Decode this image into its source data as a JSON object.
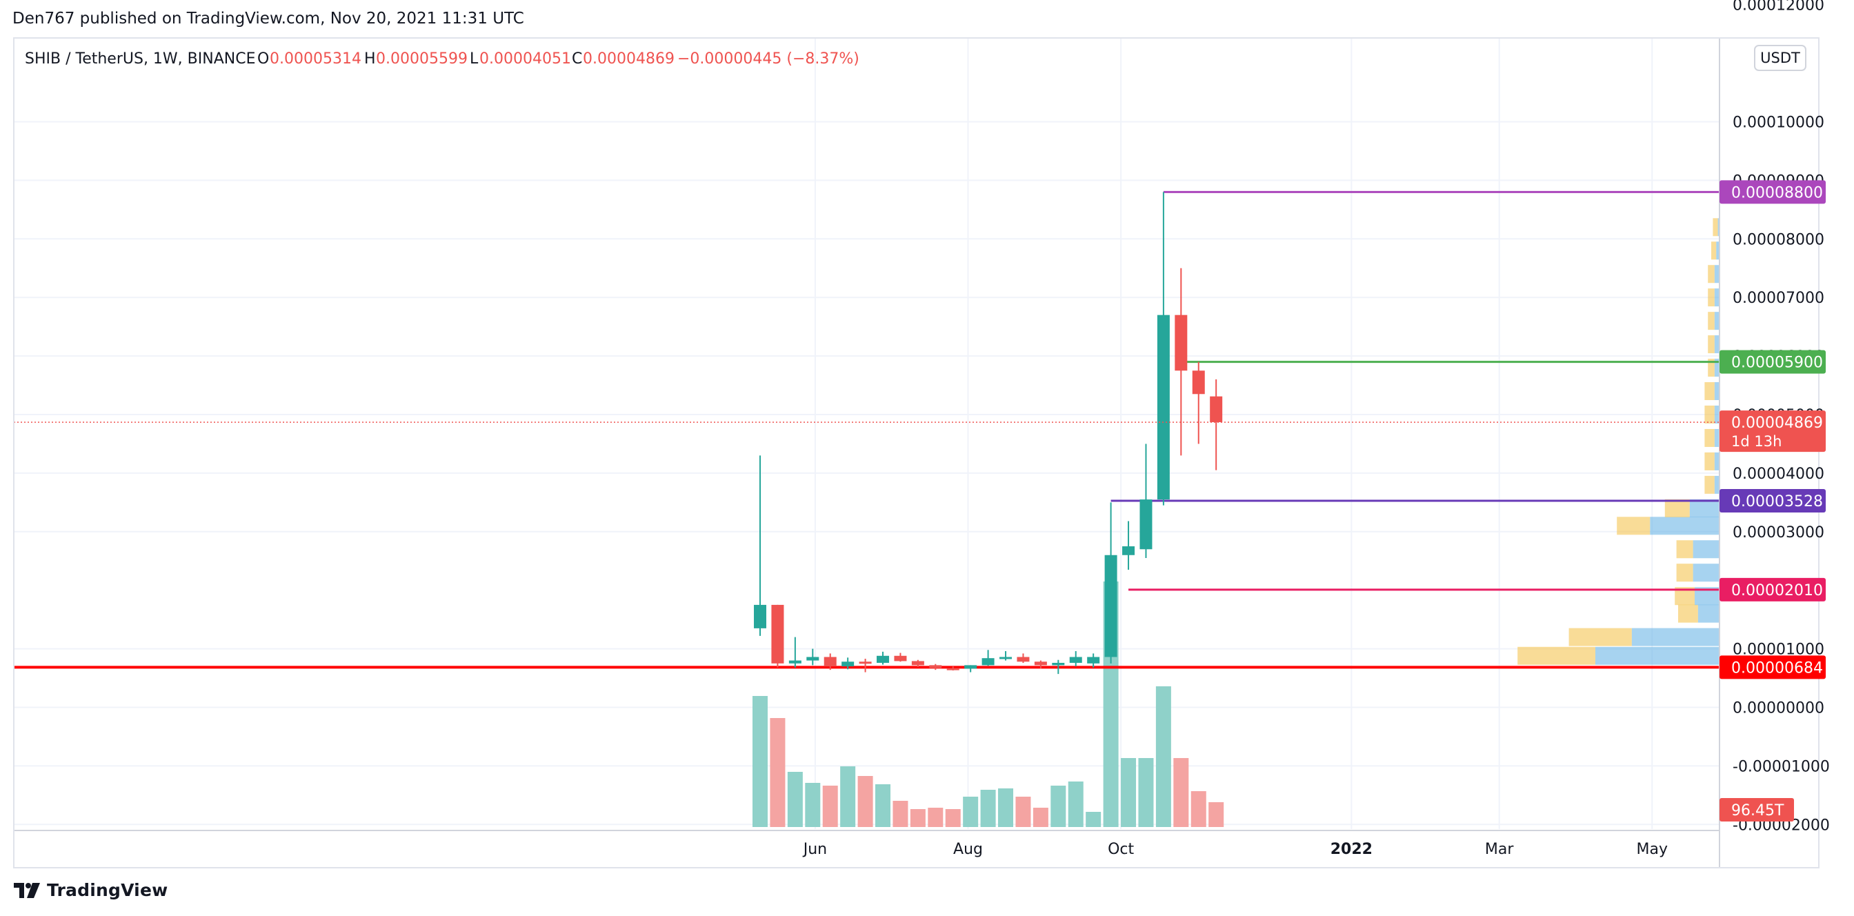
{
  "header": {
    "publisher": "Den767 published on TradingView.com, Nov 20, 2021 11:31 UTC"
  },
  "legend": {
    "symbol": "SHIB / TetherUS, 1W, BINANCE",
    "o_label": "O",
    "o_value": "0.00005314",
    "h_label": "H",
    "h_value": "0.00005599",
    "l_label": "L",
    "l_value": "0.00004051",
    "c_label": "C",
    "c_value": "0.00004869",
    "change": "−0.00000445 (−8.37%)"
  },
  "currency_button": "USDT",
  "brand": {
    "name": "TradingView"
  },
  "colors": {
    "up": "#26a69a",
    "down": "#ef5350",
    "up_volume": "#8fd1c9",
    "down_volume": "#f4a4a2",
    "purple": "#ab47bc",
    "green": "#4caf50",
    "indigo": "#673ab7",
    "crimson": "#e91e63",
    "red": "#ff0000",
    "grid": "#f0f3fa",
    "text": "#131722"
  },
  "chart_data": {
    "type": "candlestick",
    "title": "SHIB / TetherUS, 1W, BINANCE",
    "y_axis": {
      "range": [
        -2e-05,
        0.00012
      ],
      "ticks": [
        {
          "value": 0.00012,
          "label": "0.00012000"
        },
        {
          "value": 0.0001,
          "label": "0.00010000"
        },
        {
          "value": 9e-05,
          "label": "0.00009000"
        },
        {
          "value": 8e-05,
          "label": "0.00008000"
        },
        {
          "value": 7e-05,
          "label": "0.00007000"
        },
        {
          "value": 6e-05,
          "label": "0.00006000"
        },
        {
          "value": 5e-05,
          "label": "0.00005000"
        },
        {
          "value": 4e-05,
          "label": "0.00004000"
        },
        {
          "value": 3e-05,
          "label": "0.00003000"
        },
        {
          "value": 1e-05,
          "label": "0.00001000"
        },
        {
          "value": 0.0,
          "label": "0.00000000"
        },
        {
          "value": -1e-05,
          "label": "-0.00001000"
        },
        {
          "value": -2e-05,
          "label": "-0.00002000"
        }
      ]
    },
    "x_axis": {
      "ticks": [
        {
          "date": "2021-06-01",
          "label": "Jun",
          "bold": false
        },
        {
          "date": "2021-08-01",
          "label": "Aug",
          "bold": false
        },
        {
          "date": "2021-10-01",
          "label": "Oct",
          "bold": false
        },
        {
          "date": "2022-01-01",
          "label": "2022",
          "bold": true
        },
        {
          "date": "2022-03-01",
          "label": "Mar",
          "bold": false
        },
        {
          "date": "2022-05-01",
          "label": "May",
          "bold": false
        }
      ]
    },
    "candles": [
      {
        "date": "2021-05-10",
        "open": 1.35e-05,
        "high": 4.3e-05,
        "low": 1.22e-05,
        "close": 1.75e-05
      },
      {
        "date": "2021-05-17",
        "open": 1.75e-05,
        "high": 1.75e-05,
        "low": 6.8e-06,
        "close": 7.5e-06
      },
      {
        "date": "2021-05-24",
        "open": 7.5e-06,
        "high": 1.2e-05,
        "low": 6.8e-06,
        "close": 8e-06
      },
      {
        "date": "2021-05-31",
        "open": 8e-06,
        "high": 1e-05,
        "low": 7.2e-06,
        "close": 8.6e-06
      },
      {
        "date": "2021-06-07",
        "open": 8.6e-06,
        "high": 9.2e-06,
        "low": 6.4e-06,
        "close": 7e-06
      },
      {
        "date": "2021-06-14",
        "open": 7e-06,
        "high": 8.5e-06,
        "low": 6.5e-06,
        "close": 7.8e-06
      },
      {
        "date": "2021-06-21",
        "open": 7.8e-06,
        "high": 8.3e-06,
        "low": 6e-06,
        "close": 7.6e-06
      },
      {
        "date": "2021-06-28",
        "open": 7.6e-06,
        "high": 9.5e-06,
        "low": 7.3e-06,
        "close": 8.8e-06
      },
      {
        "date": "2021-07-05",
        "open": 8.8e-06,
        "high": 9.3e-06,
        "low": 7.8e-06,
        "close": 7.9e-06
      },
      {
        "date": "2021-07-12",
        "open": 7.9e-06,
        "high": 8.1e-06,
        "low": 6.9e-06,
        "close": 7.2e-06
      },
      {
        "date": "2021-07-19",
        "open": 7.2e-06,
        "high": 7.4e-06,
        "low": 6.4e-06,
        "close": 6.7e-06
      },
      {
        "date": "2021-07-26",
        "open": 6.7e-06,
        "high": 7e-06,
        "low": 6.3e-06,
        "close": 6.6e-06
      },
      {
        "date": "2021-08-02",
        "open": 6.6e-06,
        "high": 7.2e-06,
        "low": 6e-06,
        "close": 7.2e-06
      },
      {
        "date": "2021-08-09",
        "open": 7.2e-06,
        "high": 9.8e-06,
        "low": 7.1e-06,
        "close": 8.4e-06
      },
      {
        "date": "2021-08-16",
        "open": 8.4e-06,
        "high": 9.6e-06,
        "low": 8e-06,
        "close": 8.6e-06
      },
      {
        "date": "2021-08-23",
        "open": 8.6e-06,
        "high": 9.2e-06,
        "low": 7.6e-06,
        "close": 7.8e-06
      },
      {
        "date": "2021-08-30",
        "open": 7.8e-06,
        "high": 8e-06,
        "low": 6.6e-06,
        "close": 7.2e-06
      },
      {
        "date": "2021-09-06",
        "open": 7.2e-06,
        "high": 8.1e-06,
        "low": 5.7e-06,
        "close": 7.6e-06
      },
      {
        "date": "2021-09-13",
        "open": 7.6e-06,
        "high": 9.6e-06,
        "low": 7e-06,
        "close": 8.6e-06
      },
      {
        "date": "2021-09-20",
        "open": 7.5e-06,
        "high": 9.2e-06,
        "low": 6.8e-06,
        "close": 8.6e-06
      },
      {
        "date": "2021-09-27",
        "open": 8.6e-06,
        "high": 3.5e-05,
        "low": 7.5e-06,
        "close": 2.6e-05
      },
      {
        "date": "2021-10-04",
        "open": 2.6e-05,
        "high": 3.18e-05,
        "low": 2.35e-05,
        "close": 2.75e-05
      },
      {
        "date": "2021-10-11",
        "open": 2.7e-05,
        "high": 4.5e-05,
        "low": 2.55e-05,
        "close": 3.55e-05
      },
      {
        "date": "2021-10-18",
        "open": 3.55e-05,
        "high": 8.8e-05,
        "low": 3.45e-05,
        "close": 6.7e-05
      },
      {
        "date": "2021-10-25",
        "open": 6.7e-05,
        "high": 7.5e-05,
        "low": 4.3e-05,
        "close": 5.75e-05
      },
      {
        "date": "2021-11-01",
        "open": 5.75e-05,
        "high": 5.9e-05,
        "low": 4.5e-05,
        "close": 5.35e-05
      },
      {
        "date": "2021-11-08",
        "open": 5.31e-05,
        "high": 5.6e-05,
        "low": 4.05e-05,
        "close": 4.87e-05
      }
    ],
    "volume": {
      "label": "96.45T",
      "values": [
        0.95,
        0.79,
        0.4,
        0.32,
        0.3,
        0.44,
        0.37,
        0.31,
        0.19,
        0.13,
        0.14,
        0.13,
        0.22,
        0.27,
        0.28,
        0.22,
        0.14,
        0.3,
        0.33,
        0.11,
        1.78,
        0.5,
        0.5,
        1.02,
        0.5,
        0.26,
        0.18
      ]
    },
    "horizontal_levels": [
      {
        "name": "level-0.00008800",
        "value": 8.8e-05,
        "label": "0.00008800",
        "color": "#ab47bc",
        "start": "2021-10-18",
        "width": 3
      },
      {
        "name": "level-0.00005900",
        "value": 5.9e-05,
        "label": "0.00005900",
        "color": "#4caf50",
        "start": "2021-10-25",
        "width": 3
      },
      {
        "name": "level-0.00003528",
        "value": 3.528e-05,
        "label": "0.00003528",
        "color": "#673ab7",
        "start": "2021-09-27",
        "width": 3
      },
      {
        "name": "level-0.00002010",
        "value": 2.01e-05,
        "label": "0.00002010",
        "color": "#e91e63",
        "start": "2021-10-04",
        "width": 3
      },
      {
        "name": "level-0.00000684",
        "value": 6.84e-06,
        "label": "0.00000684",
        "color": "#ff0000",
        "start": null,
        "width": 4
      }
    ],
    "current_price": {
      "value": 4.869e-05,
      "label": "0.00004869",
      "countdown": "1d 13h",
      "color": "#ef5350"
    },
    "volume_profile": [
      {
        "price": 8.8e-06,
        "up": 0.47,
        "down": 0.75
      },
      {
        "price": 1.2e-05,
        "up": 0.38,
        "down": 0.53
      },
      {
        "price": 1.6e-05,
        "up": 0.12,
        "down": 0.13
      },
      {
        "price": 1.9e-05,
        "up": 0.12,
        "down": 0.15
      },
      {
        "price": 2.3e-05,
        "up": 0.1,
        "down": 0.16
      },
      {
        "price": 2.7e-05,
        "up": 0.1,
        "down": 0.16
      },
      {
        "price": 3.1e-05,
        "up": 0.2,
        "down": 0.42
      },
      {
        "price": 3.4e-05,
        "up": 0.15,
        "down": 0.18
      },
      {
        "price": 3.8e-05,
        "up": 0.06,
        "down": 0.03
      },
      {
        "price": 4.2e-05,
        "up": 0.06,
        "down": 0.03
      },
      {
        "price": 4.6e-05,
        "up": 0.06,
        "down": 0.03
      },
      {
        "price": 5e-05,
        "up": 0.06,
        "down": 0.03
      },
      {
        "price": 5.4e-05,
        "up": 0.06,
        "down": 0.03
      },
      {
        "price": 5.8e-05,
        "up": 0.04,
        "down": 0.03
      },
      {
        "price": 6.2e-05,
        "up": 0.04,
        "down": 0.03
      },
      {
        "price": 6.6e-05,
        "up": 0.04,
        "down": 0.03
      },
      {
        "price": 7e-05,
        "up": 0.04,
        "down": 0.03
      },
      {
        "price": 7.4e-05,
        "up": 0.04,
        "down": 0.03
      },
      {
        "price": 7.8e-05,
        "up": 0.03,
        "down": 0.02
      },
      {
        "price": 8.2e-05,
        "up": 0.03,
        "down": 0.01
      }
    ]
  }
}
